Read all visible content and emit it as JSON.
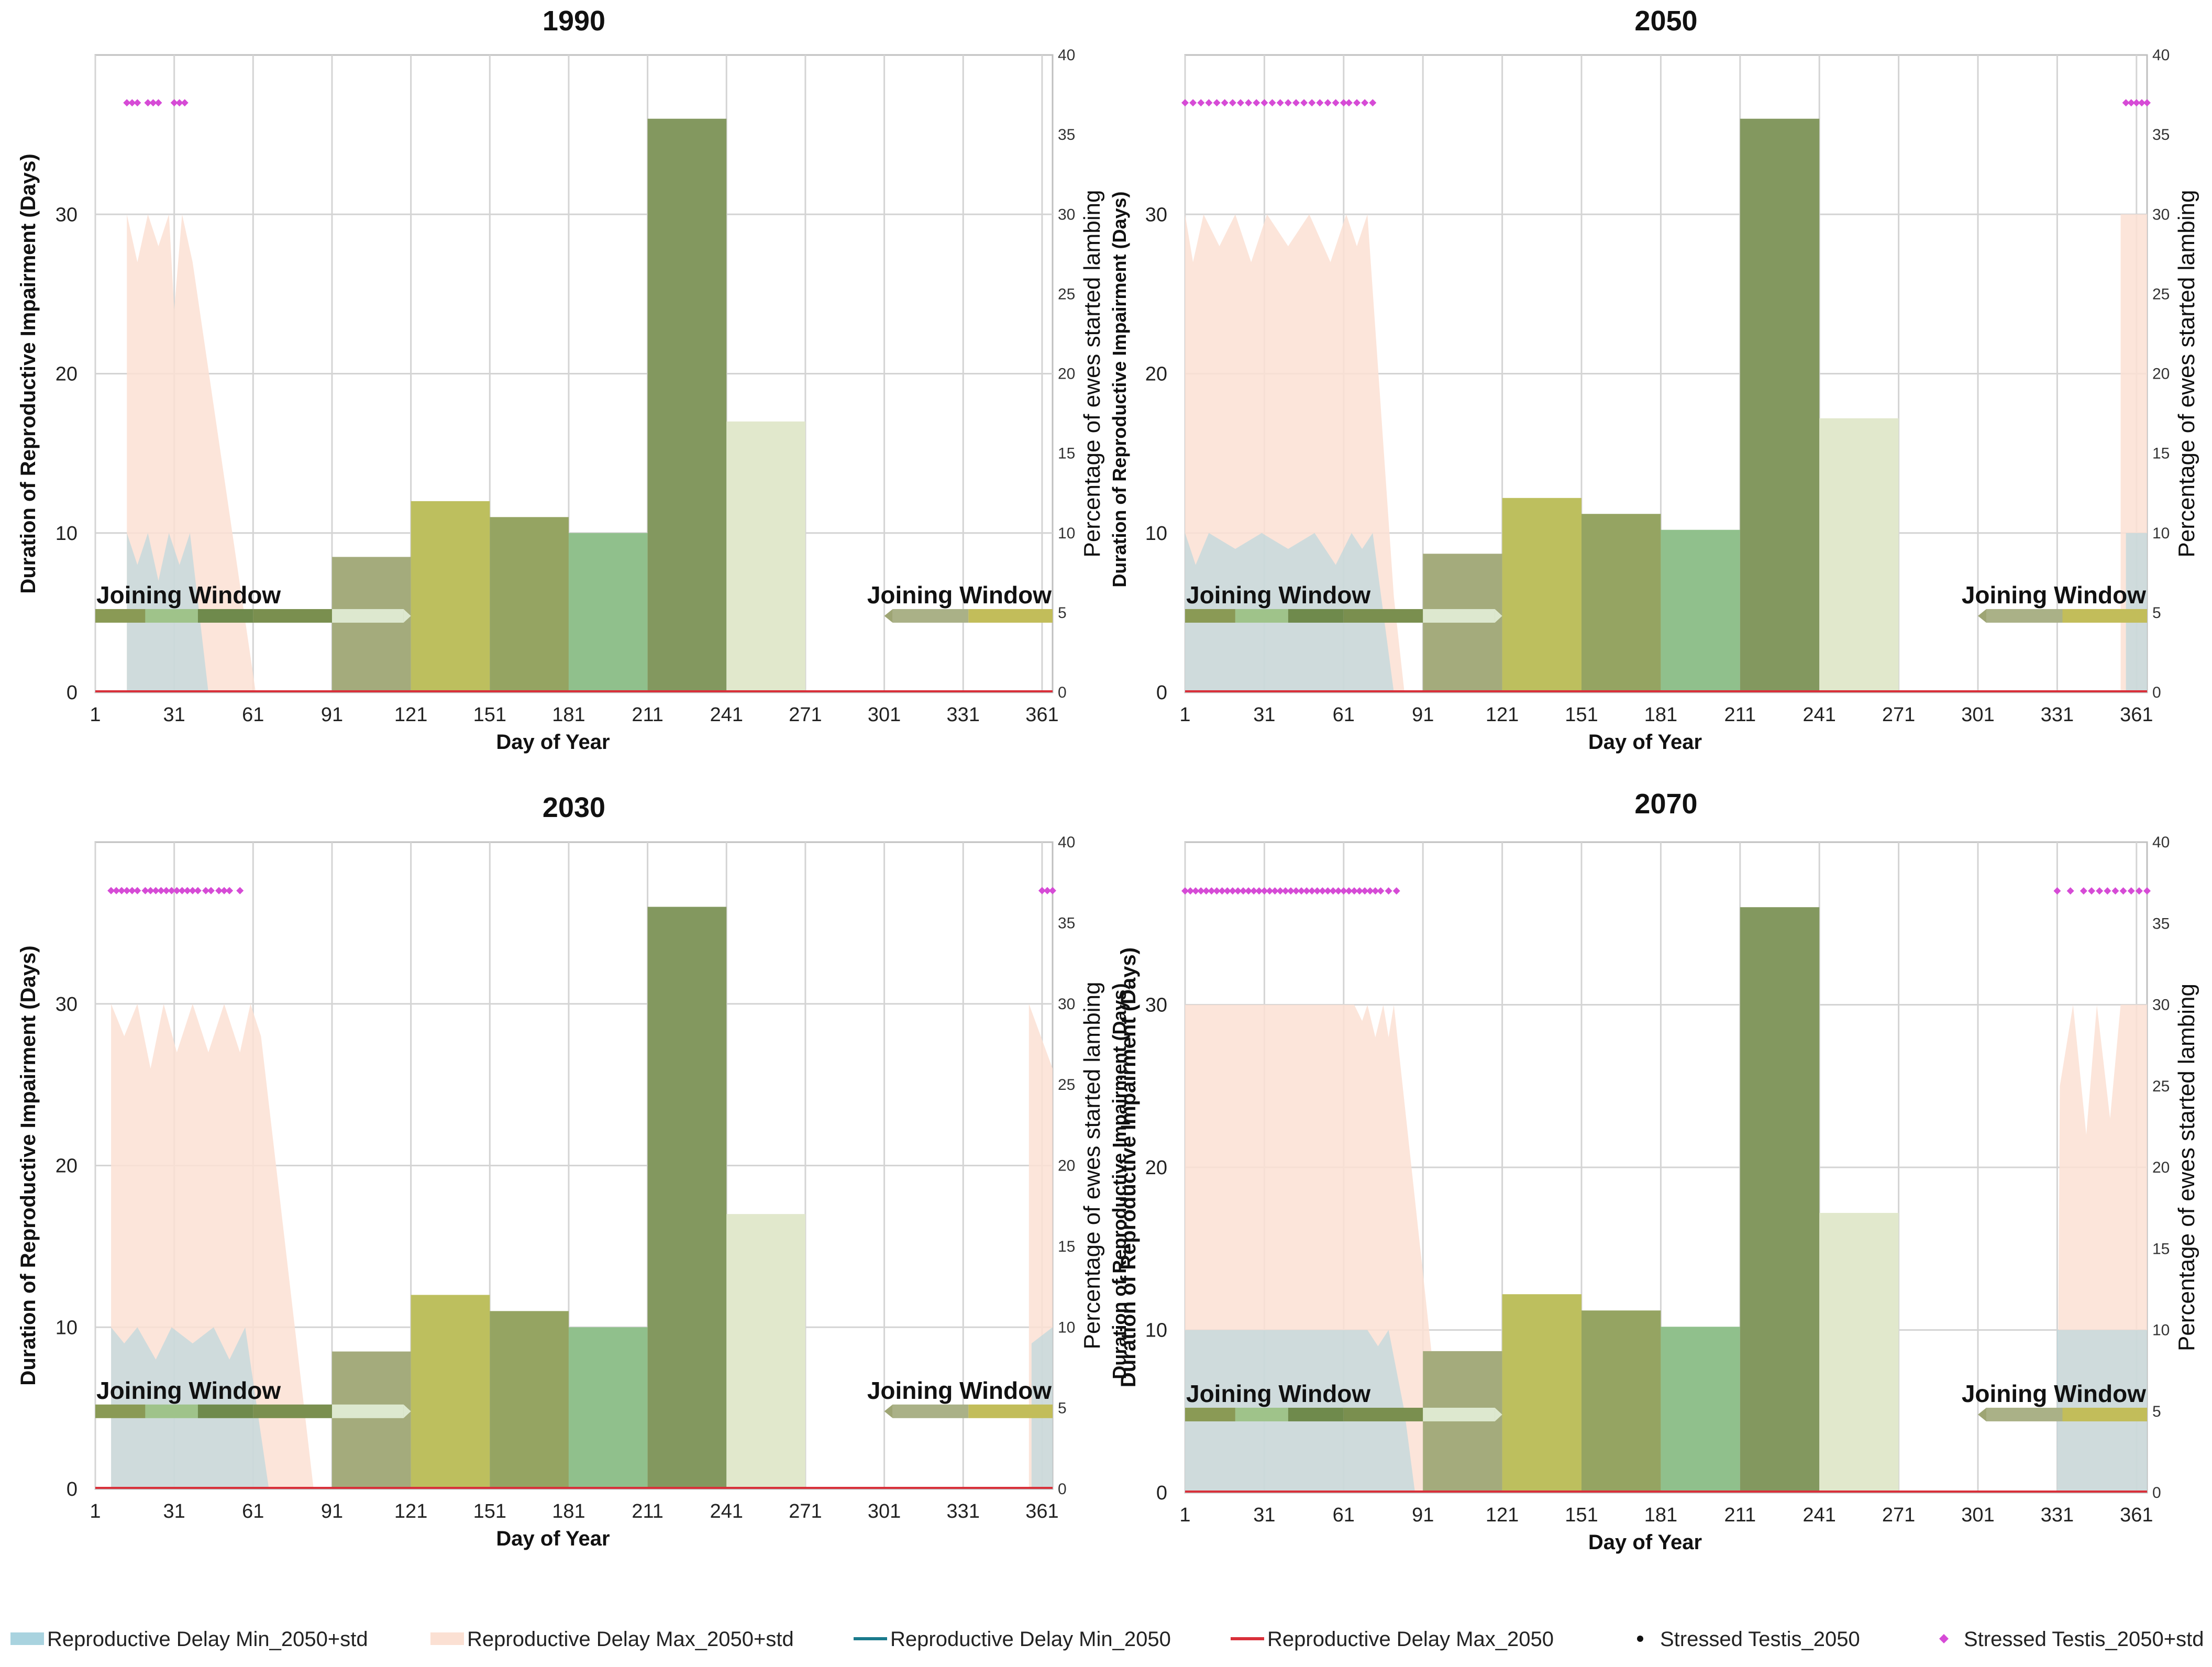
{
  "colors": {
    "delay_min_std": "#a9d3df",
    "delay_max_std": "#fbe0d3",
    "delay_min_line": "#1a7a8c",
    "delay_max_line": "#d9303a",
    "stressed_testis": "#111111",
    "stressed_testis_std": "#d64bd6",
    "joining_window_bar": "#b6bf7a",
    "grid": "#d4d4d4",
    "lambing": [
      "#a4ab7c",
      "#bdbf5e",
      "#95a462",
      "#90c08c",
      "#83985f",
      "#e1e8cc"
    ]
  },
  "shared": {
    "xlabel": "Day of Year",
    "ylabel_left": "Duration of Reproductive Impairment (Days)",
    "ylabel_right": "Percentage of ewes started lambing",
    "ylabel_right_extra": "Duration of Reproductive Impairment (Days)",
    "joining_label": "Joining Window",
    "x_ticks": [
      "1",
      "31",
      "61",
      "91",
      "121",
      "151",
      "181",
      "211",
      "241",
      "271",
      "301",
      "331",
      "361"
    ],
    "y_ticks_left": [
      "0",
      "10",
      "20",
      "30"
    ],
    "y_ticks_right": [
      "0",
      "5",
      "10",
      "15",
      "20",
      "25",
      "30",
      "35",
      "40"
    ]
  },
  "legend": [
    {
      "label": "Reproductive Delay Min_2050+std",
      "kind": "area",
      "color": "#a9d3df"
    },
    {
      "label": "Reproductive Delay Max_2050+std",
      "kind": "area",
      "color": "#fbe0d3"
    },
    {
      "label": "Reproductive Delay Min_2050",
      "kind": "line",
      "color": "#1a7a8c"
    },
    {
      "label": "Reproductive Delay Max_2050",
      "kind": "line",
      "color": "#d9303a"
    },
    {
      "label": "Stressed Testis_2050",
      "kind": "dot",
      "color": "#111111"
    },
    {
      "label": "Stressed Testis_2050+std",
      "kind": "diamond",
      "color": "#d64bd6"
    }
  ],
  "chart_data": [
    {
      "id": "p1990",
      "type": "bar",
      "title": "1990",
      "xlabel": "Day of Year",
      "ylabel": "Duration of Reproductive Impairment (Days)",
      "y2label": "Percentage of ewes started lambing",
      "xlim": [
        1,
        365
      ],
      "ylim": [
        0,
        40
      ],
      "y2lim": [
        0,
        40
      ],
      "lambing_bins": [
        {
          "start": 91,
          "end": 121,
          "value": 8.5
        },
        {
          "start": 121,
          "end": 151,
          "value": 12
        },
        {
          "start": 151,
          "end": 181,
          "value": 11
        },
        {
          "start": 181,
          "end": 211,
          "value": 10
        },
        {
          "start": 211,
          "end": 241,
          "value": 36
        },
        {
          "start": 241,
          "end": 271,
          "value": 17
        }
      ],
      "delay_max_std": [
        [
          13,
          0
        ],
        [
          13,
          30
        ],
        [
          17,
          27
        ],
        [
          21,
          30
        ],
        [
          25,
          28
        ],
        [
          29,
          30
        ],
        [
          31,
          24
        ],
        [
          34,
          30
        ],
        [
          38,
          27
        ],
        [
          62,
          0
        ]
      ],
      "delay_min_std": [
        [
          13,
          0
        ],
        [
          13,
          10
        ],
        [
          17,
          8
        ],
        [
          21,
          10
        ],
        [
          25,
          7
        ],
        [
          29,
          10
        ],
        [
          33,
          8
        ],
        [
          37,
          10
        ],
        [
          44,
          0
        ]
      ],
      "stressed_days": [
        13,
        15,
        17,
        21,
        23,
        25,
        31,
        33,
        35
      ],
      "stressed_level": 37,
      "joining_windows": [
        {
          "start": 1,
          "end": 121
        },
        {
          "start": 301,
          "end": 365
        }
      ]
    },
    {
      "id": "p2050",
      "type": "bar",
      "title": "2050",
      "xlabel": "Day of Year",
      "ylabel": "",
      "y2label": "Percentage of ewes started lambing",
      "xlim": [
        1,
        365
      ],
      "ylim": [
        0,
        40
      ],
      "y2lim": [
        0,
        40
      ],
      "lambing_bins": [
        {
          "start": 91,
          "end": 121,
          "value": 8.7
        },
        {
          "start": 121,
          "end": 151,
          "value": 12.2
        },
        {
          "start": 151,
          "end": 181,
          "value": 11.2
        },
        {
          "start": 181,
          "end": 211,
          "value": 10.2
        },
        {
          "start": 211,
          "end": 241,
          "value": 36
        },
        {
          "start": 241,
          "end": 271,
          "value": 17.2
        }
      ],
      "delay_max_std": [
        [
          1,
          0
        ],
        [
          1,
          30
        ],
        [
          4,
          27
        ],
        [
          8,
          30
        ],
        [
          14,
          28
        ],
        [
          20,
          30
        ],
        [
          26,
          27
        ],
        [
          32,
          30
        ],
        [
          40,
          28
        ],
        [
          48,
          30
        ],
        [
          56,
          27
        ],
        [
          62,
          30
        ],
        [
          66,
          28
        ],
        [
          70,
          30
        ],
        [
          80,
          6
        ],
        [
          84,
          0
        ],
        [
          355,
          0
        ],
        [
          355,
          30
        ],
        [
          365,
          30
        ],
        [
          365,
          0
        ]
      ],
      "delay_min_std": [
        [
          1,
          0
        ],
        [
          1,
          10
        ],
        [
          5,
          8
        ],
        [
          10,
          10
        ],
        [
          20,
          9
        ],
        [
          30,
          10
        ],
        [
          40,
          9
        ],
        [
          50,
          10
        ],
        [
          58,
          8
        ],
        [
          64,
          10
        ],
        [
          68,
          9
        ],
        [
          72,
          10
        ],
        [
          80,
          0
        ],
        [
          357,
          0
        ],
        [
          357,
          10
        ],
        [
          365,
          10
        ],
        [
          365,
          0
        ]
      ],
      "stressed_days": [
        1,
        4,
        7,
        10,
        13,
        16,
        19,
        22,
        25,
        28,
        31,
        34,
        37,
        40,
        43,
        46,
        49,
        52,
        55,
        58,
        61,
        63,
        66,
        69,
        72,
        357,
        359,
        361,
        363,
        365
      ],
      "stressed_level": 37,
      "joining_windows": [
        {
          "start": 1,
          "end": 121
        },
        {
          "start": 301,
          "end": 365
        }
      ]
    },
    {
      "id": "p2030",
      "type": "bar",
      "title": "2030",
      "xlabel": "Day of Year",
      "ylabel": "Duration of Reproductive Impairment (Days)",
      "y2label": "Percentage of ewes started lambing",
      "y2label_extra": "Duration of Reproductive Impairment (Days)",
      "xlim": [
        1,
        365
      ],
      "ylim": [
        0,
        40
      ],
      "y2lim": [
        0,
        40
      ],
      "lambing_bins": [
        {
          "start": 91,
          "end": 121,
          "value": 8.5
        },
        {
          "start": 121,
          "end": 151,
          "value": 12
        },
        {
          "start": 151,
          "end": 181,
          "value": 11
        },
        {
          "start": 181,
          "end": 211,
          "value": 10
        },
        {
          "start": 211,
          "end": 241,
          "value": 36
        },
        {
          "start": 241,
          "end": 271,
          "value": 17
        }
      ],
      "delay_max_std": [
        [
          7,
          0
        ],
        [
          7,
          30
        ],
        [
          12,
          28
        ],
        [
          17,
          30
        ],
        [
          22,
          26
        ],
        [
          27,
          30
        ],
        [
          32,
          27
        ],
        [
          38,
          30
        ],
        [
          44,
          27
        ],
        [
          50,
          30
        ],
        [
          56,
          27
        ],
        [
          60,
          30
        ],
        [
          64,
          28
        ],
        [
          84,
          0
        ],
        [
          356,
          0
        ],
        [
          356,
          30
        ],
        [
          365,
          26
        ],
        [
          365,
          0
        ]
      ],
      "delay_min_std": [
        [
          7,
          0
        ],
        [
          7,
          10
        ],
        [
          12,
          9
        ],
        [
          17,
          10
        ],
        [
          24,
          8
        ],
        [
          30,
          10
        ],
        [
          38,
          9
        ],
        [
          46,
          10
        ],
        [
          52,
          8
        ],
        [
          58,
          10
        ],
        [
          67,
          0
        ],
        [
          357,
          0
        ],
        [
          357,
          9
        ],
        [
          365,
          10
        ],
        [
          365,
          0
        ]
      ],
      "stressed_days": [
        7,
        9,
        11,
        13,
        15,
        17,
        20,
        22,
        24,
        26,
        28,
        30,
        32,
        34,
        36,
        38,
        40,
        43,
        45,
        48,
        50,
        52,
        56,
        361,
        363,
        365
      ],
      "stressed_level": 37,
      "joining_windows": [
        {
          "start": 1,
          "end": 121
        },
        {
          "start": 301,
          "end": 365
        }
      ]
    },
    {
      "id": "p2070",
      "type": "bar",
      "title": "2070",
      "xlabel": "Day of Year",
      "ylabel": "Duration of Reproductive Impairment (Days)",
      "y2label": "Percentage of ewes started lambing",
      "xlim": [
        1,
        365
      ],
      "ylim": [
        0,
        40
      ],
      "y2lim": [
        0,
        40
      ],
      "lambing_bins": [
        {
          "start": 91,
          "end": 121,
          "value": 8.7
        },
        {
          "start": 121,
          "end": 151,
          "value": 12.2
        },
        {
          "start": 151,
          "end": 181,
          "value": 11.2
        },
        {
          "start": 181,
          "end": 211,
          "value": 10.2
        },
        {
          "start": 211,
          "end": 241,
          "value": 36
        },
        {
          "start": 241,
          "end": 271,
          "value": 17.2
        }
      ],
      "delay_max_std": [
        [
          1,
          0
        ],
        [
          1,
          30
        ],
        [
          65,
          30
        ],
        [
          68,
          29
        ],
        [
          70,
          30
        ],
        [
          73,
          28
        ],
        [
          76,
          30
        ],
        [
          78,
          28
        ],
        [
          80,
          30
        ],
        [
          100,
          0
        ],
        [
          331,
          0
        ],
        [
          332,
          25
        ],
        [
          337,
          30
        ],
        [
          342,
          22
        ],
        [
          346,
          30
        ],
        [
          351,
          23
        ],
        [
          355,
          30
        ],
        [
          365,
          30
        ],
        [
          365,
          0
        ]
      ],
      "delay_min_std": [
        [
          1,
          0
        ],
        [
          1,
          10
        ],
        [
          70,
          10
        ],
        [
          74,
          9
        ],
        [
          78,
          10
        ],
        [
          84,
          5
        ],
        [
          88,
          0
        ],
        [
          331,
          0
        ],
        [
          331,
          10
        ],
        [
          365,
          10
        ],
        [
          365,
          0
        ]
      ],
      "stressed_days": [
        1,
        3,
        5,
        7,
        9,
        11,
        13,
        15,
        17,
        19,
        21,
        23,
        25,
        27,
        29,
        31,
        33,
        35,
        37,
        39,
        41,
        43,
        45,
        47,
        49,
        51,
        53,
        55,
        57,
        59,
        61,
        63,
        65,
        67,
        69,
        71,
        73,
        75,
        78,
        81,
        331,
        336,
        341,
        344,
        347,
        350,
        353,
        356,
        359,
        362,
        365
      ],
      "stressed_level": 37,
      "joining_windows": [
        {
          "start": 1,
          "end": 121
        },
        {
          "start": 301,
          "end": 365
        }
      ]
    }
  ]
}
